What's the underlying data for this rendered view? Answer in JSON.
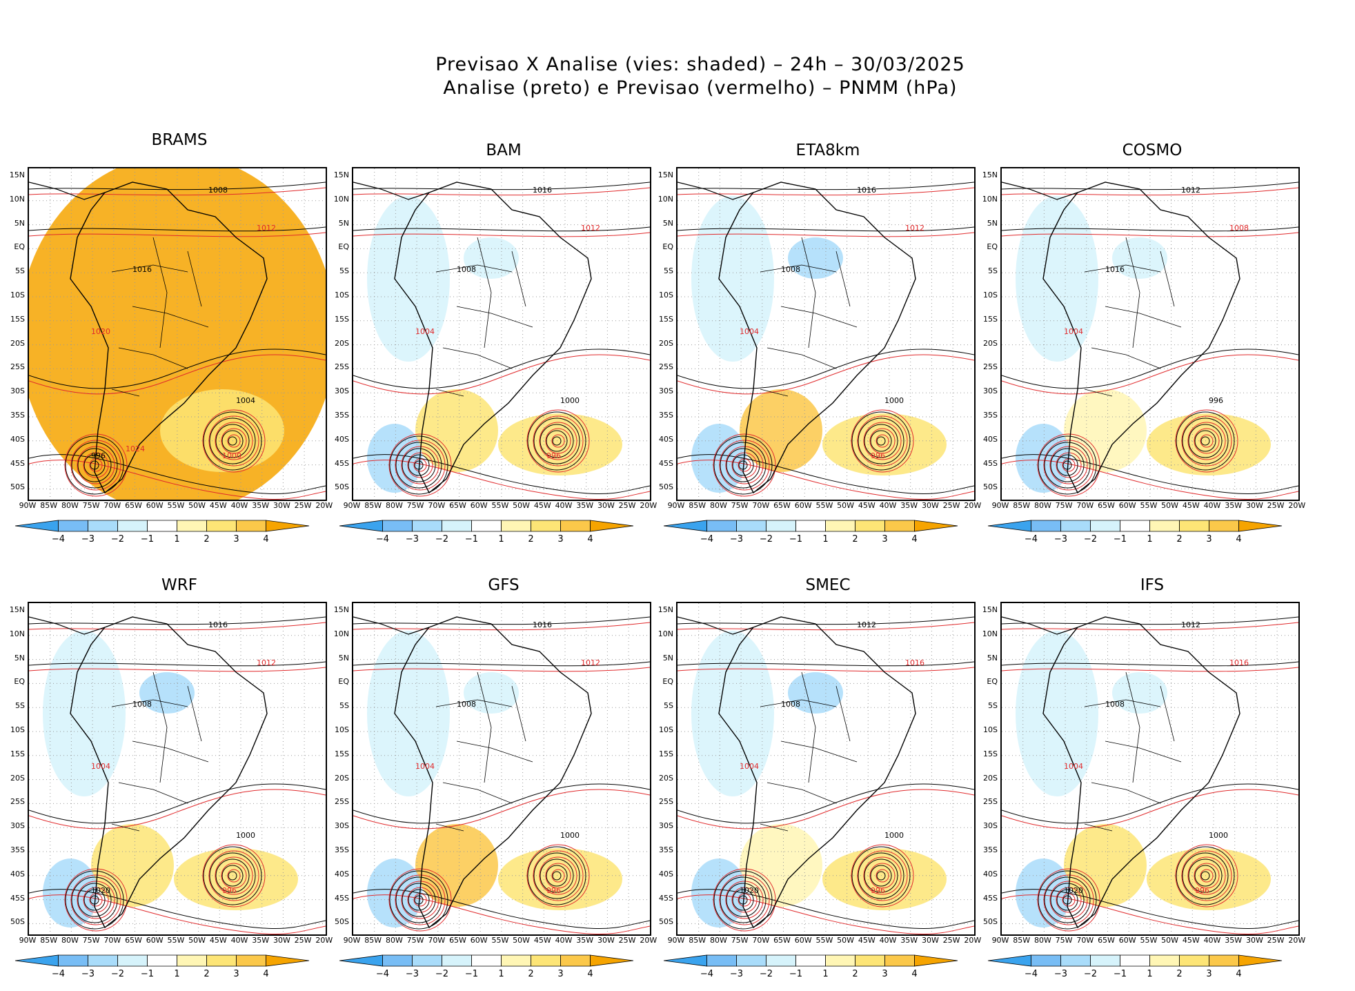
{
  "title": {
    "line1": "Previsao X Analise (vies: shaded) – 24h – 30/03/2025",
    "line2": "Analise (preto) e Previsao (vermelho) – PNMM (hPa)"
  },
  "lat_labels": [
    "15N",
    "10N",
    "5N",
    "EQ",
    "5S",
    "10S",
    "15S",
    "20S",
    "25S",
    "30S",
    "35S",
    "40S",
    "45S",
    "50S"
  ],
  "lon_labels": [
    "90W",
    "85W",
    "80W",
    "75W",
    "70W",
    "65W",
    "60W",
    "55W",
    "50W",
    "45W",
    "40W",
    "35W",
    "30W",
    "25W",
    "20W"
  ],
  "colorbar_labels": [
    "−4",
    "−3",
    "−2",
    "−1",
    "1",
    "2",
    "3",
    "4"
  ],
  "colors": {
    "neg4": "#3aa3ee",
    "neg3": "#78bdf5",
    "neg2": "#a9dcfa",
    "neg1": "#d6f3fb",
    "pos1": "#fff6b5",
    "pos2": "#fde576",
    "pos3": "#fbc84a",
    "pos4": "#f6a400",
    "analysis": "#000000",
    "forecast": "#e0282a"
  },
  "panels": [
    {
      "name": "BRAMS",
      "contours": [
        "1008",
        "1012",
        "1016",
        "1020",
        "1004",
        "1000",
        "996",
        "1024"
      ]
    },
    {
      "name": "BAM",
      "contours": [
        "1016",
        "1012",
        "1008",
        "1004",
        "1000",
        "996"
      ]
    },
    {
      "name": "ETA8km",
      "contours": [
        "1016",
        "1012",
        "1008",
        "1004",
        "1000",
        "996"
      ]
    },
    {
      "name": "COSMO",
      "contours": [
        "1012",
        "1008",
        "1016",
        "1004",
        "996"
      ]
    },
    {
      "name": "WRF",
      "contours": [
        "1016",
        "1012",
        "1008",
        "1004",
        "1000",
        "996",
        "1020"
      ]
    },
    {
      "name": "GFS",
      "contours": [
        "1016",
        "1012",
        "1008",
        "1004",
        "1000",
        "996"
      ]
    },
    {
      "name": "SMEC",
      "contours": [
        "1012",
        "1016",
        "1008",
        "1004",
        "1000",
        "996",
        "1020"
      ]
    },
    {
      "name": "IFS",
      "contours": [
        "1012",
        "1016",
        "1008",
        "1004",
        "1000",
        "996",
        "1020"
      ]
    }
  ]
}
